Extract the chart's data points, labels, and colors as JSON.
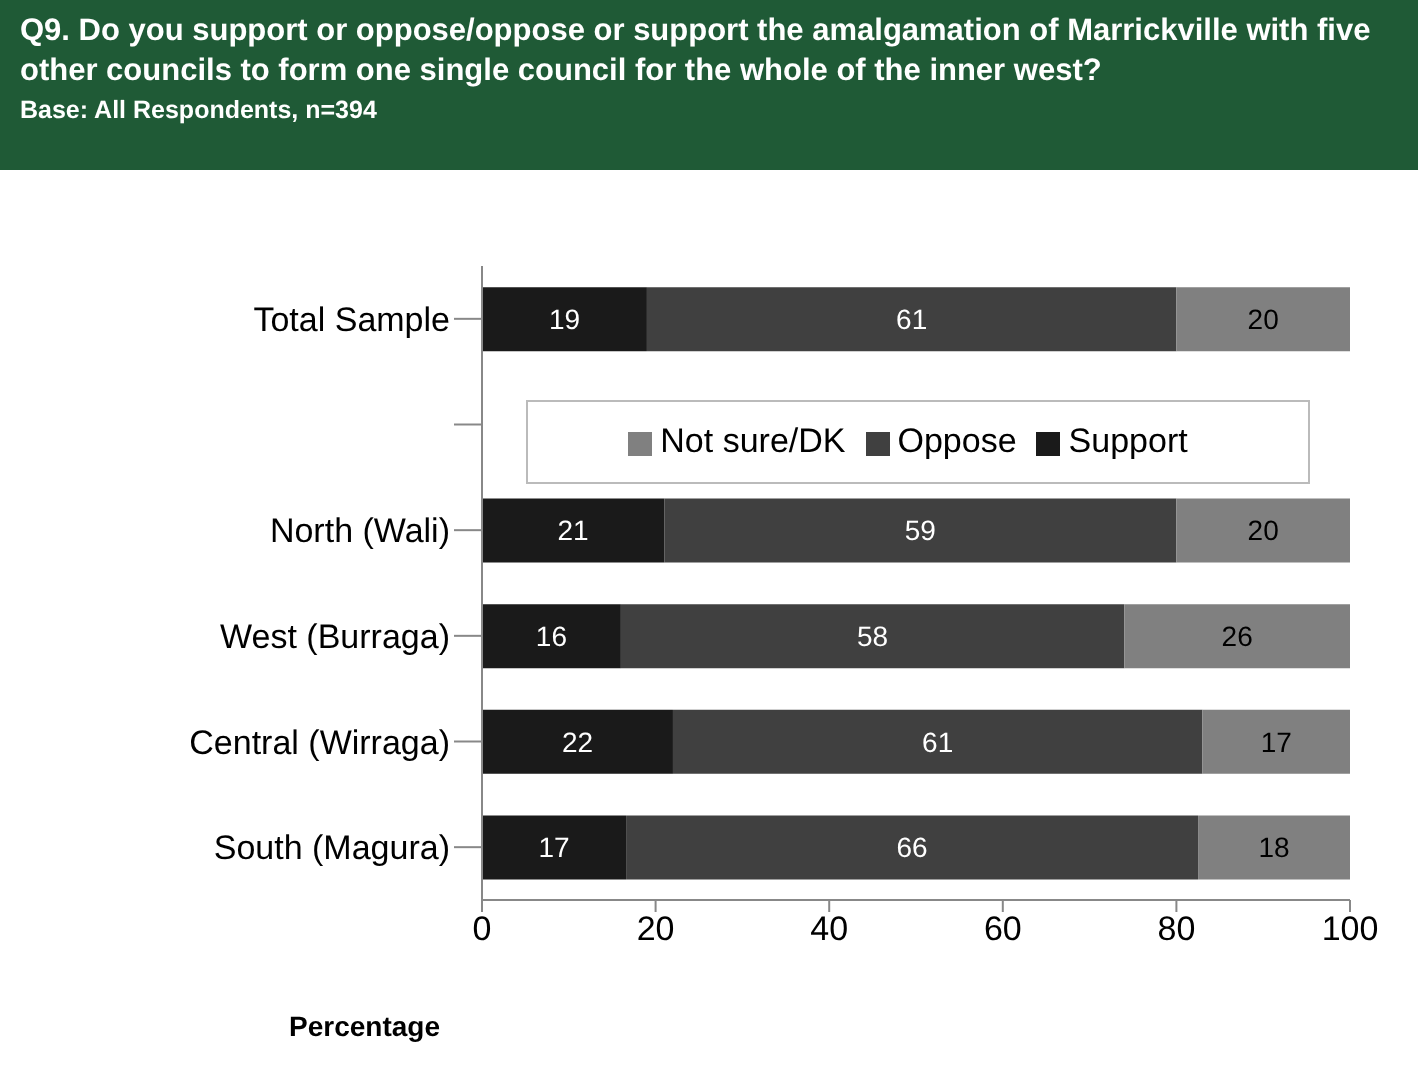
{
  "chart_data": {
    "type": "bar",
    "orientation": "horizontal",
    "stacked": true,
    "title": "Q9. Do you support or oppose/oppose or support the amalgamation of Marrickville with five other councils to form one single council for the whole of the inner west?",
    "subtitle": "Base: All Respondents, n=394",
    "xlabel": "Percentage",
    "categories": [
      "Total Sample",
      null,
      "North (Wali)",
      "West (Burraga)",
      "Central (Wirraga)",
      "South (Magura)"
    ],
    "series": [
      {
        "name": "Support",
        "color": "#1a1a1a",
        "values": [
          19,
          null,
          21,
          16,
          22,
          16.6
        ],
        "value_labels": [
          "19",
          null,
          "21",
          "16",
          "22",
          "17"
        ]
      },
      {
        "name": "Oppose",
        "color": "#404040",
        "values": [
          61,
          null,
          59,
          58,
          61,
          65.9
        ],
        "value_labels": [
          "61",
          null,
          "59",
          "58",
          "61",
          "66"
        ]
      },
      {
        "name": "Not sure/DK",
        "color": "#808080",
        "values": [
          20,
          null,
          20,
          26,
          17,
          17.5
        ],
        "value_labels": [
          "20",
          null,
          "20",
          "26",
          "17",
          "18"
        ]
      }
    ],
    "xlim": [
      0,
      100
    ],
    "xticks": [
      0,
      20,
      40,
      60,
      80,
      100
    ],
    "grid": false,
    "legend": "top"
  }
}
